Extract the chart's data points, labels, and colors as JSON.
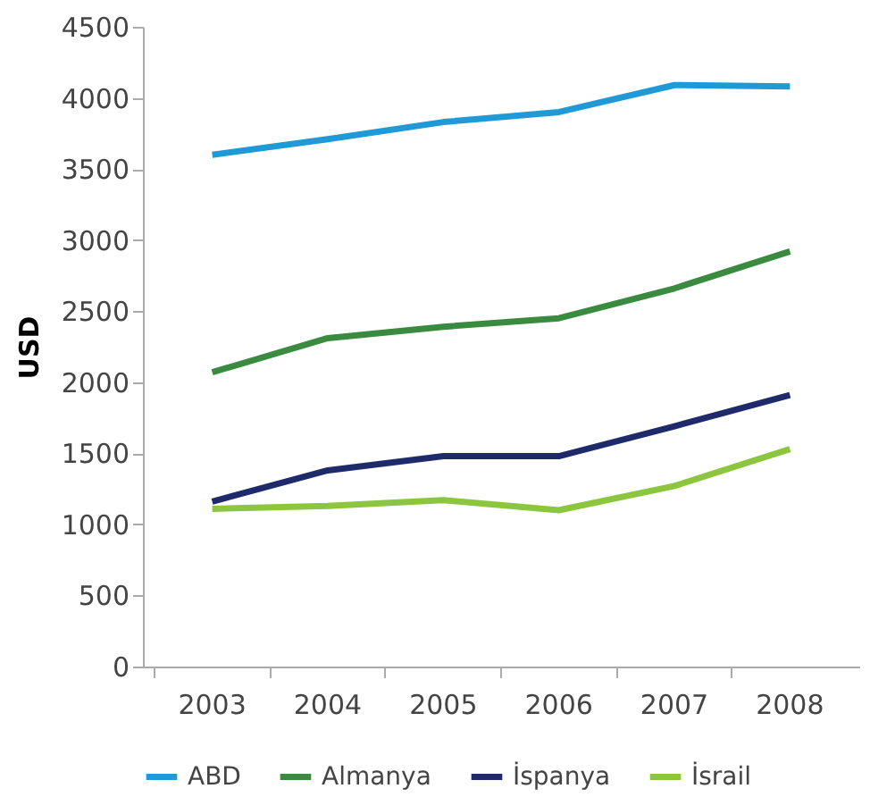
{
  "chart_data": {
    "type": "line",
    "ylabel": "USD",
    "categories": [
      "2003",
      "2004",
      "2005",
      "2006",
      "2007",
      "2008"
    ],
    "series": [
      {
        "name": "ABD",
        "color": "#1f9ad6",
        "values": [
          3600,
          3710,
          3830,
          3900,
          4090,
          4080
        ]
      },
      {
        "name": "Almanya",
        "color": "#3a8a3f",
        "values": [
          2070,
          2310,
          2390,
          2450,
          2660,
          2920
        ]
      },
      {
        "name": "İspanya",
        "color": "#1f2a6b",
        "values": [
          1160,
          1380,
          1480,
          1480,
          1690,
          1910
        ]
      },
      {
        "name": "İsrail",
        "color": "#8cc63f",
        "values": [
          1110,
          1130,
          1170,
          1100,
          1270,
          1530
        ]
      }
    ],
    "ylim": [
      0,
      4500
    ],
    "yticks": [
      0,
      500,
      1000,
      1500,
      2000,
      2500,
      3000,
      3500,
      4000,
      4500
    ],
    "grid": false,
    "legend": "bottom",
    "marker": "none",
    "line_style": "solid"
  }
}
